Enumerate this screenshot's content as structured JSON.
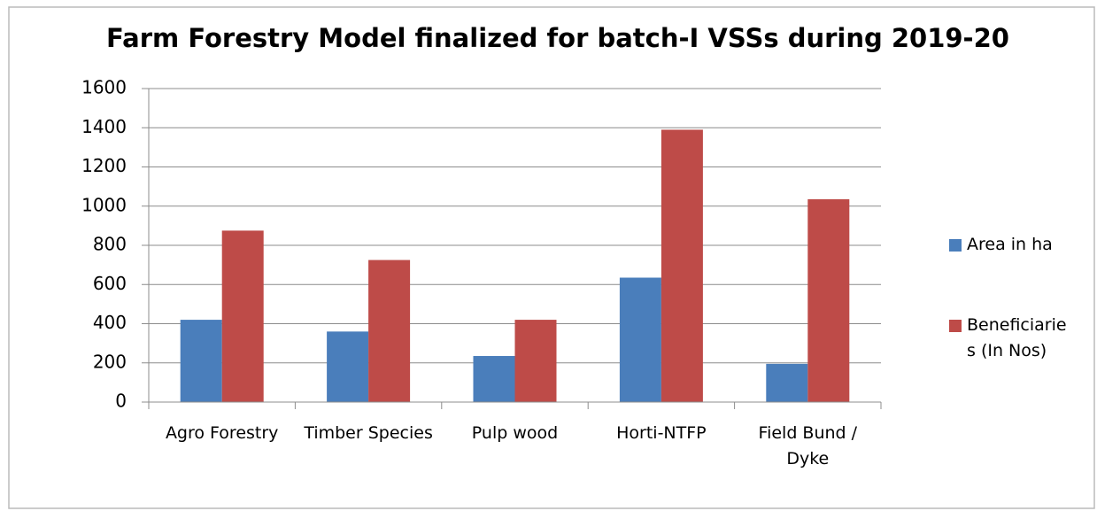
{
  "chart_data": {
    "type": "bar",
    "title": "Farm Forestry Model finalized for batch-I VSSs during 2019-20",
    "categories": [
      "Agro Forestry",
      "Timber Species",
      "Pulp wood",
      "Horti-NTFP",
      "Field Bund / Dyke"
    ],
    "series": [
      {
        "name": "Area in ha",
        "color": "#4a7ebb",
        "values": [
          420,
          360,
          235,
          635,
          195
        ]
      },
      {
        "name": "Beneficiaries (In Nos)",
        "color": "#be4b48",
        "values": [
          875,
          725,
          420,
          1390,
          1035
        ]
      }
    ],
    "ylim": [
      0,
      1600
    ],
    "yticks": [
      0,
      200,
      400,
      600,
      800,
      1000,
      1200,
      1400,
      1600
    ],
    "grid": true,
    "legend": "right"
  }
}
